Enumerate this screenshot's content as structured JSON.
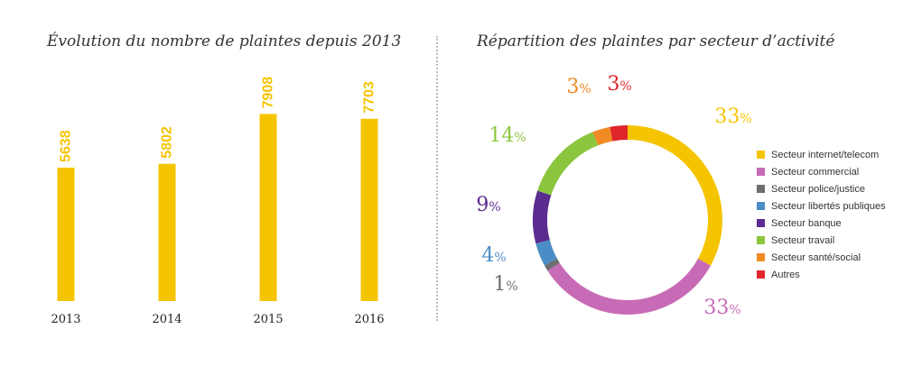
{
  "chart_data": [
    {
      "type": "bar",
      "title": "Évolution du nombre de plaintes depuis 2013",
      "categories": [
        "2013",
        "2014",
        "2015",
        "2016"
      ],
      "values": [
        5638,
        5802,
        7908,
        7703
      ],
      "value_labels": [
        "5638",
        "5802",
        "7908",
        "7703"
      ],
      "ylim": [
        0,
        8000
      ],
      "grid": false,
      "color": "#F5C400"
    },
    {
      "type": "pie",
      "title": "Répartition des plaintes par secteur d’activité",
      "donut": true,
      "legend_position": "right",
      "slices": [
        {
          "label": "Secteur internet/telecom",
          "value": 33,
          "pct_label": "33",
          "color": "#F5C400"
        },
        {
          "label": "Secteur commercial",
          "value": 33,
          "pct_label": "33",
          "color": "#C86BB7"
        },
        {
          "label": "Secteur police/justice",
          "value": 1,
          "pct_label": "1",
          "color": "#6D6D6D"
        },
        {
          "label": "Secteur libertés publiques",
          "value": 4,
          "pct_label": "4",
          "color": "#4A8CC6"
        },
        {
          "label": "Secteur banque",
          "value": 9,
          "pct_label": "9",
          "color": "#5B2C8F"
        },
        {
          "label": "Secteur travail",
          "value": 14,
          "pct_label": "14",
          "color": "#8CC63F"
        },
        {
          "label": "Secteur santé/social",
          "value": 3,
          "pct_label": "3",
          "color": "#F08A24"
        },
        {
          "label": "Autres",
          "value": 3,
          "pct_label": "3",
          "color": "#E0262A"
        }
      ],
      "percent_sign": "%"
    }
  ]
}
